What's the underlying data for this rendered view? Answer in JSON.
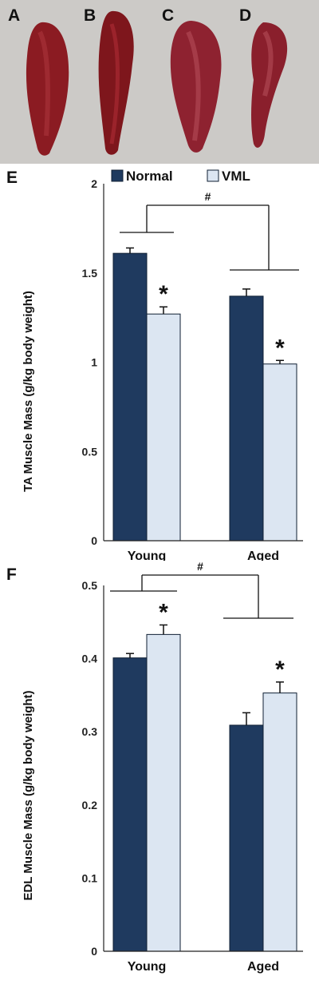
{
  "photos": {
    "labels": [
      "A",
      "B",
      "C",
      "D"
    ],
    "background": "#c7c5c2",
    "tissue_color": "#8a1a20"
  },
  "colors": {
    "normal": "#1f3a5f",
    "vml": "#dce6f2",
    "bar_stroke": "#0f1f33",
    "axis": "#222222"
  },
  "chart_data": [
    {
      "panel_label": "E",
      "type": "bar",
      "ylabel": "TA Muscle Mass (g/kg body weight)",
      "categories": [
        "Young",
        "Aged"
      ],
      "ylim": [
        0,
        2
      ],
      "yticks": [
        "0",
        "0.5",
        "1",
        "1.5",
        "2"
      ],
      "ytick_values": [
        0,
        0.5,
        1,
        1.5,
        2
      ],
      "legend": {
        "placement": "top",
        "entries": [
          "Normal",
          "VML"
        ]
      },
      "series": [
        {
          "name": "Normal",
          "values": [
            1.61,
            1.37
          ],
          "errors": [
            0.03,
            0.04
          ]
        },
        {
          "name": "VML",
          "values": [
            1.27,
            0.99
          ],
          "errors": [
            0.04,
            0.02
          ]
        }
      ],
      "annotations": {
        "significance": [
          "*",
          "*"
        ],
        "group_comparison": "#"
      }
    },
    {
      "panel_label": "F",
      "type": "bar",
      "ylabel": "EDL Muscle Mass (g/kg body weight)",
      "categories": [
        "Young",
        "Aged"
      ],
      "ylim": [
        0,
        0.5
      ],
      "yticks": [
        "0",
        "0.1",
        "0.2",
        "0.3",
        "0.4",
        "0.5"
      ],
      "ytick_values": [
        0,
        0.1,
        0.2,
        0.3,
        0.4,
        0.5
      ],
      "series": [
        {
          "name": "Normal",
          "values": [
            0.401,
            0.309
          ],
          "errors": [
            0.006,
            0.017
          ]
        },
        {
          "name": "VML",
          "values": [
            0.433,
            0.353
          ],
          "errors": [
            0.013,
            0.015
          ]
        }
      ],
      "annotations": {
        "significance": [
          "*",
          "*"
        ],
        "group_comparison": "#"
      }
    }
  ]
}
